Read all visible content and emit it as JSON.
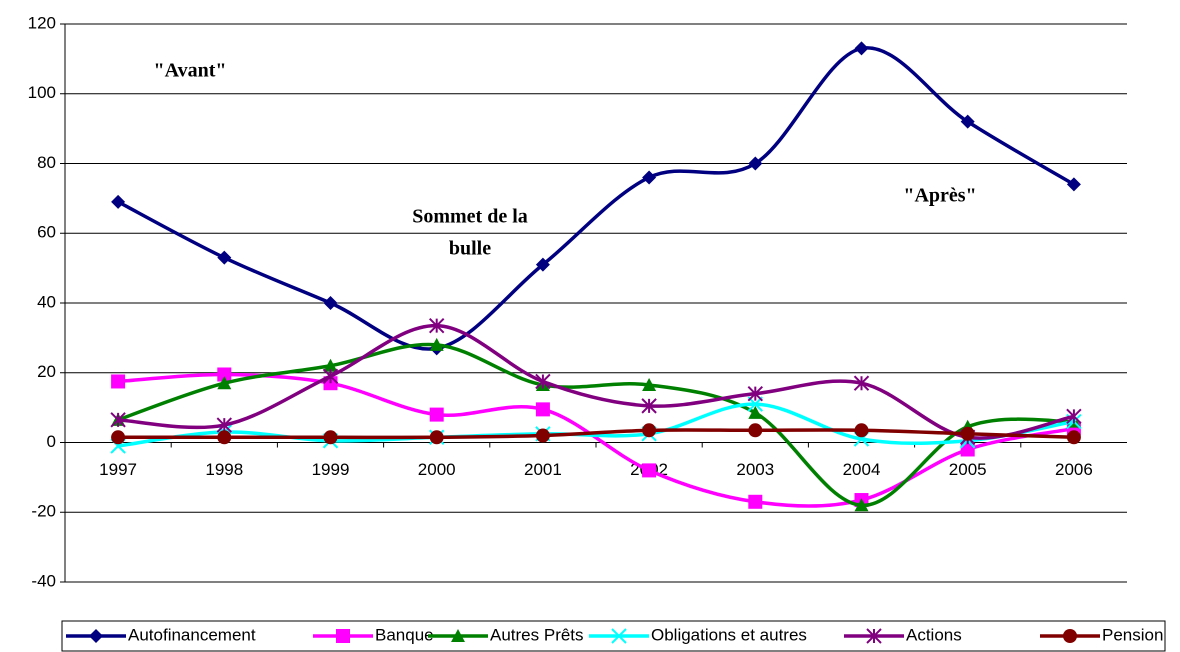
{
  "chart_data": {
    "type": "line",
    "categories": [
      "1997",
      "1998",
      "1999",
      "2000",
      "2001",
      "2002",
      "2003",
      "2004",
      "2005",
      "2006"
    ],
    "series": [
      {
        "name": "Autofinancement",
        "color": "#000080",
        "marker": "diamond",
        "values": [
          69,
          53,
          40,
          27,
          51,
          76,
          80,
          113,
          92,
          74
        ]
      },
      {
        "name": "Banque",
        "color": "#ff00ff",
        "marker": "square",
        "values": [
          17.5,
          19.5,
          17,
          8,
          9.5,
          -8,
          -17,
          -16.5,
          -2,
          4
        ]
      },
      {
        "name": "Autres Prêts",
        "color": "#008000",
        "marker": "triangle",
        "values": [
          6.5,
          17,
          22,
          28,
          16.5,
          16.5,
          8.5,
          -18,
          4.5,
          6
        ]
      },
      {
        "name": "Obligations et autres",
        "color": "#00ffff",
        "marker": "x",
        "values": [
          -1,
          3,
          0.5,
          1.5,
          2.5,
          2.5,
          11,
          1,
          0.5,
          6
        ]
      },
      {
        "name": "Actions",
        "color": "#800080",
        "marker": "star",
        "values": [
          6.5,
          5,
          19,
          33.5,
          17.5,
          10.5,
          14,
          17,
          1.5,
          7.5
        ]
      },
      {
        "name": "Pension",
        "color": "#800000",
        "marker": "circle",
        "values": [
          1.5,
          1.5,
          1.5,
          1.5,
          2,
          3.5,
          3.5,
          3.5,
          2.5,
          1.5
        ]
      }
    ],
    "ylim": [
      -40,
      120
    ],
    "yticks": [
      -40,
      -20,
      0,
      20,
      40,
      60,
      80,
      100,
      120
    ],
    "grid": true,
    "smooth": true,
    "legend": "bottom",
    "annotations": [
      {
        "lines": [
          "\"Avant\""
        ]
      },
      {
        "lines": [
          "Sommet de la",
          "bulle"
        ]
      },
      {
        "lines": [
          "\"Après\""
        ]
      }
    ]
  }
}
